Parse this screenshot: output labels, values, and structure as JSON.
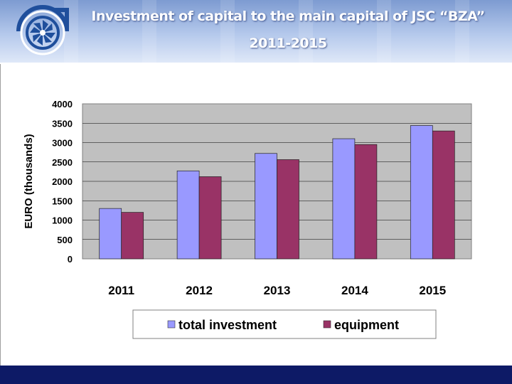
{
  "slide": {
    "title_line1": "Investment of capital to the main capital of JSC “BZA”",
    "title_line2": "2011-2015"
  },
  "colors": {
    "header_top": "#7d9bd1",
    "footer": "#0d1a66",
    "plot_bg": "#c0c0c0"
  },
  "logo": {
    "icon": "turbine-logo-icon"
  },
  "chart_data": {
    "type": "bar",
    "title": "",
    "ylabel": "EURO (thousands)",
    "xlabel": "",
    "ylim": [
      0,
      4000
    ],
    "yticks": [
      0,
      500,
      1000,
      1500,
      2000,
      2500,
      3000,
      3500,
      4000
    ],
    "grid": true,
    "legend_position": "bottom",
    "categories": [
      "2011",
      "2012",
      "2013",
      "2014",
      "2015"
    ],
    "series": [
      {
        "name": "total investment",
        "color": "#9999ff",
        "values": [
          1300,
          2270,
          2720,
          3100,
          3440
        ]
      },
      {
        "name": "equipment",
        "color": "#993366",
        "values": [
          1200,
          2120,
          2560,
          2950,
          3300
        ]
      }
    ]
  }
}
